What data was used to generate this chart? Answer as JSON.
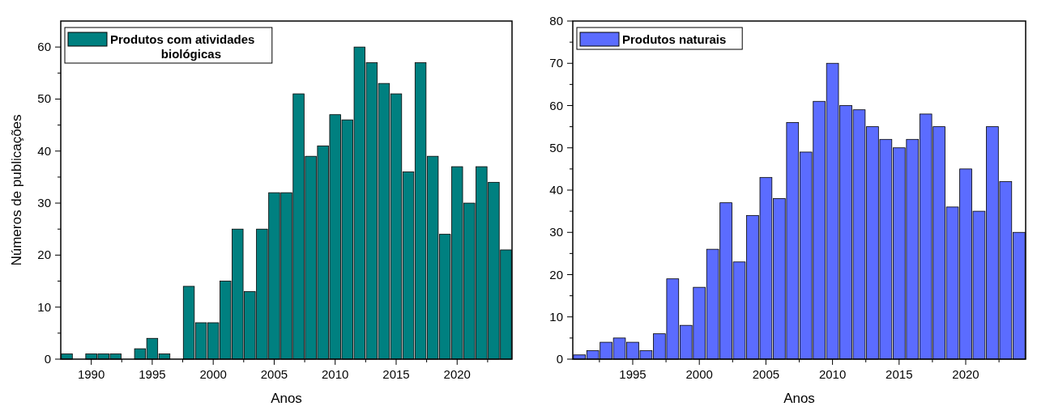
{
  "chart_data": [
    {
      "type": "bar",
      "xlabel": "Anos",
      "ylabel": "Números de publicações",
      "legend": "top left",
      "x": [
        1988,
        1990,
        1991,
        1992,
        1994,
        1995,
        1996,
        1998,
        1999,
        2000,
        2001,
        2002,
        2003,
        2004,
        2005,
        2006,
        2007,
        2008,
        2009,
        2010,
        2011,
        2012,
        2013,
        2014,
        2015,
        2016,
        2017,
        2018,
        2019,
        2020,
        2021,
        2022,
        2023,
        2024
      ],
      "series": [
        {
          "name": "Produtos com atividades biológicas",
          "color": "#008080",
          "values": [
            1,
            1,
            1,
            1,
            2,
            4,
            1,
            14,
            7,
            7,
            15,
            25,
            13,
            25,
            32,
            32,
            51,
            39,
            41,
            47,
            46,
            60,
            57,
            53,
            51,
            36,
            57,
            39,
            24,
            37,
            30,
            37,
            34,
            21
          ]
        }
      ],
      "xlim": [
        1987.5,
        2024.5
      ],
      "xticks": [
        1990,
        1995,
        2000,
        2005,
        2010,
        2015,
        2020,
        {
          "value": 1992.5,
          "label": null
        },
        {
          "value": 1997.5,
          "label": null
        },
        {
          "value": 2002.5,
          "label": null
        },
        {
          "value": 2007.5,
          "label": null
        },
        {
          "value": 2012.5,
          "label": null
        },
        {
          "value": 2017.5,
          "label": null
        },
        {
          "value": 2022.5,
          "label": null
        }
      ],
      "ylim": [
        0,
        65
      ],
      "yticks": [
        0,
        10,
        20,
        30,
        40,
        50,
        60,
        {
          "value": 5,
          "label": null
        },
        {
          "value": 15,
          "label": null
        },
        {
          "value": 25,
          "label": null
        },
        {
          "value": 35,
          "label": null
        },
        {
          "value": 45,
          "label": null
        },
        {
          "value": 55,
          "label": null
        }
      ]
    },
    {
      "type": "bar",
      "xlabel": "Anos",
      "legend": "top left",
      "x": [
        1991,
        1992,
        1993,
        1994,
        1995,
        1996,
        1997,
        1998,
        1999,
        2000,
        2001,
        2002,
        2003,
        2004,
        2005,
        2006,
        2007,
        2008,
        2009,
        2010,
        2011,
        2012,
        2013,
        2014,
        2015,
        2016,
        2017,
        2018,
        2019,
        2020,
        2021,
        2022,
        2023,
        2024
      ],
      "series": [
        {
          "name": "Produtos naturais",
          "color": "#5b6cff",
          "values": [
            1,
            2,
            4,
            5,
            4,
            2,
            6,
            19,
            8,
            17,
            26,
            37,
            23,
            34,
            43,
            38,
            56,
            49,
            61,
            70,
            60,
            59,
            55,
            52,
            50,
            52,
            58,
            55,
            36,
            45,
            35,
            55,
            42,
            30
          ]
        }
      ],
      "xlim": [
        1990.5,
        2024.5
      ],
      "xticks": [
        1995,
        2000,
        2005,
        2010,
        2015,
        2020,
        {
          "value": 1992.5,
          "label": null
        },
        {
          "value": 1997.5,
          "label": null
        },
        {
          "value": 2002.5,
          "label": null
        },
        {
          "value": 2007.5,
          "label": null
        },
        {
          "value": 2012.5,
          "label": null
        },
        {
          "value": 2017.5,
          "label": null
        },
        {
          "value": 2022.5,
          "label": null
        }
      ],
      "ylim": [
        0,
        80
      ],
      "yticks": [
        0,
        10,
        20,
        30,
        40,
        50,
        60,
        70,
        80,
        {
          "value": 5,
          "label": null
        },
        {
          "value": 15,
          "label": null
        },
        {
          "value": 25,
          "label": null
        },
        {
          "value": 35,
          "label": null
        },
        {
          "value": 45,
          "label": null
        },
        {
          "value": 55,
          "label": null
        },
        {
          "value": 65,
          "label": null
        },
        {
          "value": 75,
          "label": null
        }
      ]
    }
  ]
}
